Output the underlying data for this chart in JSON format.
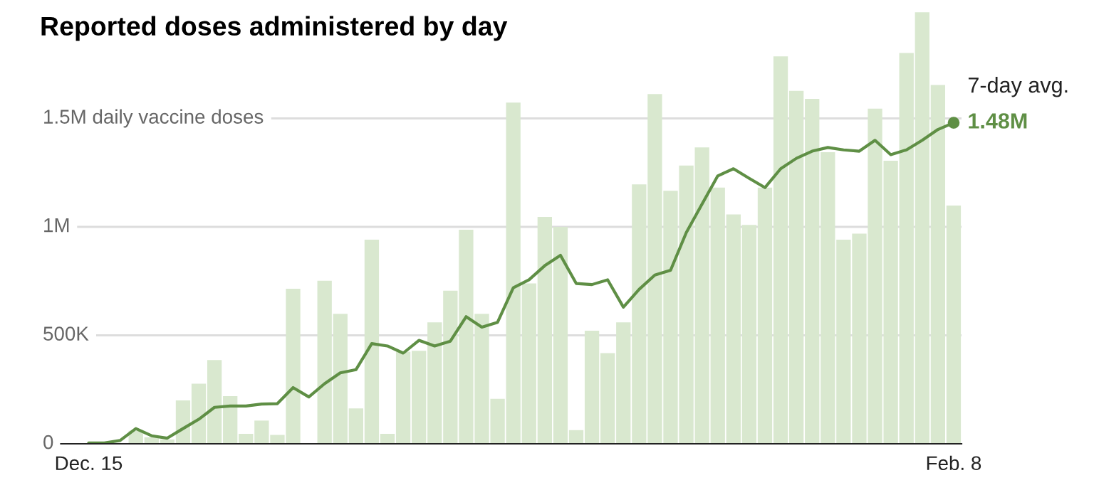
{
  "chart_data": {
    "type": "bar",
    "title": "Reported doses administered by day",
    "categories": [
      "Dec. 15",
      null,
      null,
      null,
      null,
      null,
      null,
      null,
      null,
      null,
      null,
      null,
      null,
      null,
      null,
      null,
      null,
      null,
      null,
      null,
      null,
      null,
      null,
      null,
      null,
      null,
      null,
      null,
      null,
      null,
      null,
      null,
      null,
      null,
      null,
      null,
      null,
      null,
      null,
      null,
      null,
      null,
      null,
      null,
      null,
      null,
      null,
      null,
      null,
      null,
      null,
      null,
      null,
      null,
      null,
      "Feb. 8"
    ],
    "series": [
      {
        "color": "#d9e8cf",
        "values": [
          null,
          6000,
          null,
          60000,
          30000,
          20000,
          200000,
          277000,
          386000,
          220000,
          46000,
          107000,
          41000,
          715000,
          0,
          752000,
          599000,
          163000,
          941000,
          46000,
          425000,
          429000,
          560000,
          706000,
          987000,
          599000,
          207000,
          1573000,
          739000,
          1046000,
          1000000,
          63000,
          521000,
          418000,
          560000,
          1196000,
          1612000,
          1166000,
          1283000,
          1366000,
          1181000,
          1057000,
          1009000,
          1181000,
          1786000,
          1627000,
          1590000,
          1344000,
          941000,
          969000,
          1545000,
          1305000,
          1802000,
          1989000,
          1654000,
          1098000
        ]
      },
      {
        "type": "line",
        "name": "7-day avg.",
        "color": "#5f8f45",
        "values": [
          4000,
          4000,
          15000,
          70000,
          37000,
          26000,
          70000,
          113000,
          168000,
          174000,
          174000,
          183000,
          185000,
          259000,
          216000,
          277000,
          327000,
          342000,
          462000,
          451000,
          418000,
          477000,
          451000,
          473000,
          586000,
          538000,
          560000,
          719000,
          756000,
          821000,
          869000,
          739000,
          734000,
          756000,
          630000,
          712000,
          778000,
          800000,
          974000,
          1105000,
          1235000,
          1268000,
          1224000,
          1181000,
          1268000,
          1316000,
          1349000,
          1366000,
          1355000,
          1349000,
          1399000,
          1333000,
          1355000,
          1399000,
          1449000,
          1480000
        ],
        "value_labels": [
          null,
          null,
          null,
          null,
          null,
          null,
          null,
          null,
          null,
          null,
          null,
          null,
          null,
          null,
          null,
          null,
          null,
          null,
          null,
          null,
          null,
          null,
          null,
          null,
          null,
          null,
          null,
          null,
          null,
          null,
          null,
          null,
          null,
          null,
          null,
          null,
          null,
          null,
          null,
          null,
          null,
          null,
          null,
          null,
          null,
          null,
          null,
          null,
          null,
          null,
          null,
          null,
          null,
          null,
          null,
          "1.48M"
        ]
      }
    ],
    "ylim": [
      0,
      2000000
    ],
    "yticks": [
      0,
      {
        "value": 500000,
        "label": "500K"
      },
      {
        "value": 1000000,
        "label": "1M"
      },
      {
        "value": 1500000,
        "label": "1.5M daily vaccine doses"
      }
    ],
    "grid": "y",
    "legend": false
  }
}
